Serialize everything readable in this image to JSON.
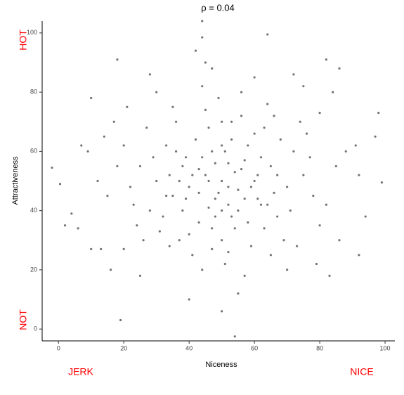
{
  "chart_data": {
    "type": "scatter",
    "title": "ρ = 0.04",
    "x_label": "Niceness",
    "y_label": "Attractiveness",
    "annotations": [
      "HOT",
      "NOT",
      "JERK",
      "NICE"
    ],
    "color": "#000000",
    "xlim": [
      -5,
      103
    ],
    "ylim": [
      -4,
      104
    ],
    "xticks": [
      0,
      20,
      40,
      60,
      80,
      100
    ],
    "yticks": [
      0,
      20,
      40,
      60,
      80,
      100
    ],
    "x": [
      44,
      44,
      64,
      -2,
      0.5,
      54,
      19,
      99,
      98,
      92,
      10,
      2,
      4,
      6,
      97,
      92,
      82,
      86,
      18,
      42,
      50,
      45,
      55,
      48,
      52,
      40,
      60,
      47,
      53,
      38,
      62,
      35,
      58,
      43,
      65,
      30,
      70,
      50,
      46,
      56,
      33,
      67,
      28,
      72,
      41,
      59,
      25,
      75,
      49,
      51,
      36,
      63,
      31,
      69,
      22,
      78,
      44,
      57,
      20,
      80,
      39,
      61,
      54,
      46,
      42,
      58,
      34,
      66,
      48,
      52,
      27,
      73,
      37,
      64,
      24,
      76,
      47,
      55,
      15,
      85,
      30,
      70,
      18,
      82,
      40,
      60,
      12,
      88,
      50,
      45,
      53,
      47,
      57,
      43,
      38,
      62,
      33,
      67,
      50,
      52,
      29,
      71,
      23,
      77,
      35,
      65,
      44,
      56,
      26,
      74,
      41,
      59,
      49,
      51,
      37,
      63,
      45,
      55,
      32,
      68,
      16,
      84,
      14,
      86,
      21,
      79,
      25,
      75,
      20,
      80,
      44,
      56,
      48,
      52,
      40,
      60,
      36,
      64,
      46,
      54,
      10,
      13,
      9,
      7,
      91,
      94,
      17,
      83,
      28,
      72,
      57,
      43,
      50,
      50,
      61,
      39,
      47,
      53,
      34,
      66
    ],
    "values": [
      104,
      98.5,
      99.5,
      54.5,
      49,
      -2.5,
      3,
      49.5,
      73,
      25,
      78,
      35,
      39,
      34,
      65,
      52,
      91,
      88,
      91,
      94,
      50,
      52,
      47,
      44,
      56,
      48,
      50,
      60,
      38,
      55,
      42,
      45,
      62,
      36,
      55,
      50,
      48,
      30,
      68,
      72,
      62,
      38,
      40,
      60,
      25,
      28,
      55,
      52,
      78,
      22,
      70,
      68,
      33,
      30,
      48,
      45,
      82,
      18,
      62,
      35,
      58,
      44,
      53,
      41,
      64,
      36,
      52,
      46,
      56,
      42,
      68,
      28,
      30,
      76,
      35,
      66,
      88,
      12,
      45,
      55,
      80,
      20,
      55,
      42,
      10,
      85,
      50,
      60,
      6,
      90,
      64,
      34,
      57,
      46,
      40,
      58,
      45,
      52,
      70,
      26,
      58,
      40,
      42,
      58,
      75,
      25,
      20,
      80,
      30,
      70,
      52,
      48,
      46,
      60,
      50,
      34,
      74,
      40,
      38,
      64,
      20,
      80,
      65,
      30,
      75,
      22,
      18,
      82,
      27,
      73,
      58,
      54,
      38,
      48,
      32,
      66,
      60,
      42,
      50,
      34,
      27,
      27,
      60,
      62,
      62,
      38,
      70,
      18,
      86,
      86,
      44,
      54,
      40,
      62,
      52,
      44,
      27,
      70,
      28,
      72
    ]
  }
}
